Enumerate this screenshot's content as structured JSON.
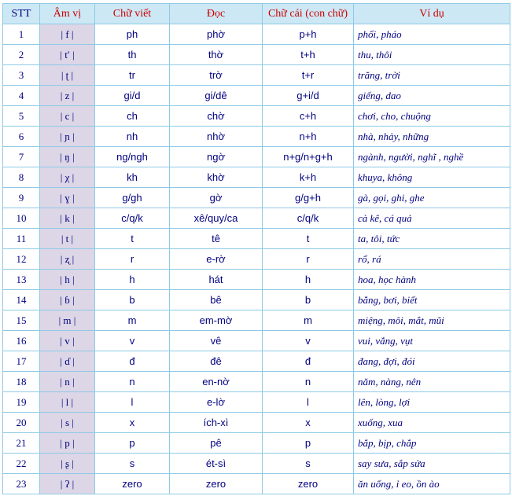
{
  "headers": [
    "STT",
    "Âm vị",
    "Chữ viết",
    "Đọc",
    "Chữ cái (con chữ)",
    "Ví dụ"
  ],
  "rows": [
    [
      "1",
      "| f |",
      "ph",
      "phờ",
      "p+h",
      "phổi, pháo"
    ],
    [
      "2",
      "| tʹ |",
      "th",
      "thờ",
      "t+h",
      "thu, thôi"
    ],
    [
      "3",
      "| ʈ |",
      "tr",
      "trờ",
      "t+r",
      "trăng, trời"
    ],
    [
      "4",
      "| z |",
      "gi/d",
      "gi/dê",
      "g+i/d",
      "giếng, dao"
    ],
    [
      "5",
      "| c |",
      "ch",
      "chờ",
      "c+h",
      "chơi, cho, chuộng"
    ],
    [
      "6",
      "| ɲ |",
      "nh",
      "nhờ",
      "n+h",
      "nhà, nhảy, những"
    ],
    [
      "7",
      "| ŋ |",
      "ng/ngh",
      "ngờ",
      "n+g/n+g+h",
      "ngành, người, nghĩ , nghề"
    ],
    [
      "8",
      "| χ |",
      "kh",
      "khờ",
      "k+h",
      "khuya, không"
    ],
    [
      "9",
      "| ɣ |",
      "g/gh",
      "gờ",
      "g/g+h",
      "gà, gọi, ghi, ghe"
    ],
    [
      "10",
      "| k |",
      "c/q/k",
      "xê/quy/ca",
      "c/q/k",
      "cà kê, cá quả"
    ],
    [
      "11",
      "| t |",
      "t",
      "tê",
      "t",
      "ta, tôi, tức"
    ],
    [
      "12",
      "| ʐ |",
      "r",
      "e-rờ",
      "r",
      "rổ, rá"
    ],
    [
      "13",
      "| h |",
      "h",
      "hát",
      "h",
      "hoa, học hành"
    ],
    [
      "14",
      "| ɓ |",
      "b",
      "bê",
      "b",
      "bằng, bơi, biết"
    ],
    [
      "15",
      "| m |",
      "m",
      "em-mờ",
      "m",
      "miệng, môi, mắt,  mũi"
    ],
    [
      "16",
      "| v |",
      "v",
      "vê",
      "v",
      "vui, vắng, vụt"
    ],
    [
      "17",
      "| ɗ |",
      "đ",
      "đê",
      "đ",
      "đang, đợi, đói"
    ],
    [
      "18",
      "| n |",
      "n",
      "en-nờ",
      "n",
      "năm, nàng, nên"
    ],
    [
      "19",
      "| l |",
      "l",
      "e-lờ",
      "l",
      "lên, lòng, lợi"
    ],
    [
      "20",
      "| s |",
      "x",
      "ích-xì",
      "x",
      "xuống, xua"
    ],
    [
      "21",
      "| p |",
      "p",
      "pê",
      "p",
      "bắp, bịp, chắp"
    ],
    [
      "22",
      "| ʂ |",
      "s",
      "ét-sì",
      "s",
      "say sưa, sắp sửa"
    ],
    [
      "23",
      "| ʔ |",
      "zero",
      "zero",
      "zero",
      "ăn uống, ỉ eo, ồn ào"
    ]
  ]
}
